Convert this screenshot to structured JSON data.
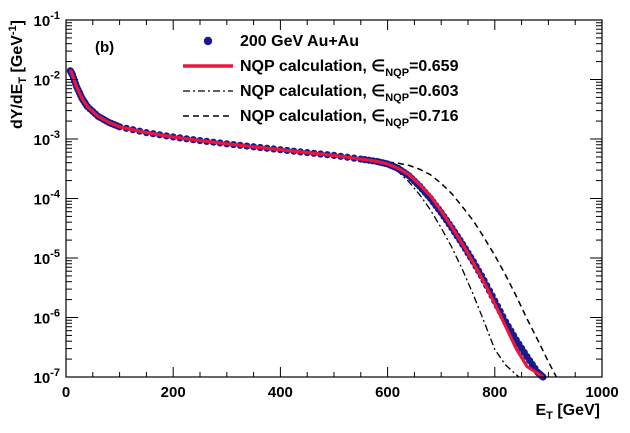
{
  "chart_data": {
    "type": "line",
    "panel_label": "(b)",
    "xlabel": {
      "main": "E",
      "sub": "T",
      "rest": " [GeV]"
    },
    "ylabel": {
      "main": "dY/dE",
      "sub": "T",
      "rest": " [GeV",
      "sup": "-1",
      "close": "]"
    },
    "xlim": [
      0,
      1000
    ],
    "ylim_log10": [
      -7,
      -1
    ],
    "x_ticks": [
      0,
      200,
      400,
      600,
      800,
      1000
    ],
    "y_ticks": [
      {
        "mant": "10",
        "exp": "-1"
      },
      {
        "mant": "10",
        "exp": "-2"
      },
      {
        "mant": "10",
        "exp": "-3"
      },
      {
        "mant": "10",
        "exp": "-4"
      },
      {
        "mant": "10",
        "exp": "-5"
      },
      {
        "mant": "10",
        "exp": "-6"
      },
      {
        "mant": "10",
        "exp": "-7"
      }
    ],
    "legend_placement": "top-right",
    "series": [
      {
        "name": "200 GeV Au+Au",
        "style": "points",
        "color": "#1a1a8c",
        "x": [
          8,
          12,
          20,
          30,
          40,
          60,
          80,
          100,
          150,
          200,
          250,
          300,
          350,
          400,
          450,
          500,
          550,
          580,
          600,
          620,
          640,
          660,
          680,
          700,
          720,
          740,
          760,
          780,
          800,
          820,
          840,
          860,
          880,
          890
        ],
        "y": [
          0.014,
          0.012,
          0.0075,
          0.0048,
          0.0035,
          0.0024,
          0.0019,
          0.0016,
          0.00128,
          0.00108,
          0.00094,
          0.00083,
          0.00074,
          0.00066,
          0.00059,
          0.00053,
          0.00046,
          0.00042,
          0.00038,
          0.00032,
          0.00024,
          0.00016,
          0.0001,
          5.8e-05,
          3.2e-05,
          1.7e-05,
          8.7e-06,
          4.2e-06,
          1.9e-06,
          8.5e-07,
          4.2e-07,
          2.2e-07,
          1.2e-07,
          1e-07
        ]
      },
      {
        "name": "NQP calculation, ∈",
        "sub": "NQP",
        "value": "=0.659",
        "style": "solid",
        "color": "#e8173f",
        "x": [
          8,
          12,
          20,
          30,
          40,
          60,
          80,
          100,
          150,
          200,
          250,
          300,
          350,
          400,
          450,
          500,
          550,
          580,
          600,
          620,
          640,
          660,
          680,
          700,
          720,
          740,
          760,
          780,
          800,
          820,
          840,
          860,
          880,
          890
        ],
        "y": [
          0.0145,
          0.012,
          0.0074,
          0.0048,
          0.0035,
          0.0024,
          0.0019,
          0.0016,
          0.00128,
          0.00108,
          0.00094,
          0.00083,
          0.00074,
          0.00066,
          0.00059,
          0.00053,
          0.00046,
          0.00042,
          0.00038,
          0.00032,
          0.00025,
          0.00017,
          0.00011,
          6.2e-05,
          3.3e-05,
          1.7e-05,
          8.3e-06,
          3.9e-06,
          1.7e-06,
          7.2e-07,
          3e-07,
          1.5e-07,
          1.15e-07,
          1e-07
        ]
      },
      {
        "name": "NQP calculation, ∈",
        "sub": "NQP",
        "value": "=0.603",
        "style": "dashdot",
        "color": "#000000",
        "x": [
          8,
          12,
          20,
          30,
          40,
          60,
          80,
          100,
          150,
          200,
          250,
          300,
          350,
          400,
          450,
          500,
          550,
          580,
          600,
          620,
          640,
          660,
          680,
          700,
          720,
          740,
          760,
          780,
          800,
          820,
          835,
          845
        ],
        "y": [
          0.0145,
          0.012,
          0.0074,
          0.0048,
          0.0035,
          0.0024,
          0.0019,
          0.0016,
          0.00128,
          0.00108,
          0.00094,
          0.00083,
          0.00074,
          0.00066,
          0.00059,
          0.00053,
          0.00046,
          0.00041,
          0.00036,
          0.00028,
          0.00019,
          0.000115,
          6.4e-05,
          3.2e-05,
          1.5e-05,
          6.3e-06,
          2.4e-06,
          8.5e-07,
          2.9e-07,
          1.6e-07,
          1.2e-07,
          1e-07
        ]
      },
      {
        "name": "NQP calculation, ∈",
        "sub": "NQP",
        "value": "=0.716",
        "style": "dashed",
        "color": "#000000",
        "x": [
          8,
          12,
          20,
          30,
          40,
          60,
          80,
          100,
          150,
          200,
          250,
          300,
          350,
          400,
          450,
          500,
          550,
          580,
          600,
          620,
          640,
          660,
          680,
          700,
          720,
          740,
          760,
          780,
          800,
          820,
          840,
          860,
          880,
          900,
          915
        ],
        "y": [
          0.0145,
          0.012,
          0.0074,
          0.0048,
          0.0035,
          0.0024,
          0.0019,
          0.0016,
          0.00128,
          0.00108,
          0.00094,
          0.00083,
          0.00074,
          0.00066,
          0.00059,
          0.00053,
          0.00047,
          0.00044,
          0.00041,
          0.00039,
          0.00036,
          0.00031,
          0.00025,
          0.00018,
          0.00012,
          7.2e-05,
          4.2e-05,
          2.2e-05,
          1.1e-05,
          5.2e-06,
          2.3e-06,
          9.5e-07,
          4.2e-07,
          1.8e-07,
          1e-07
        ]
      }
    ]
  }
}
